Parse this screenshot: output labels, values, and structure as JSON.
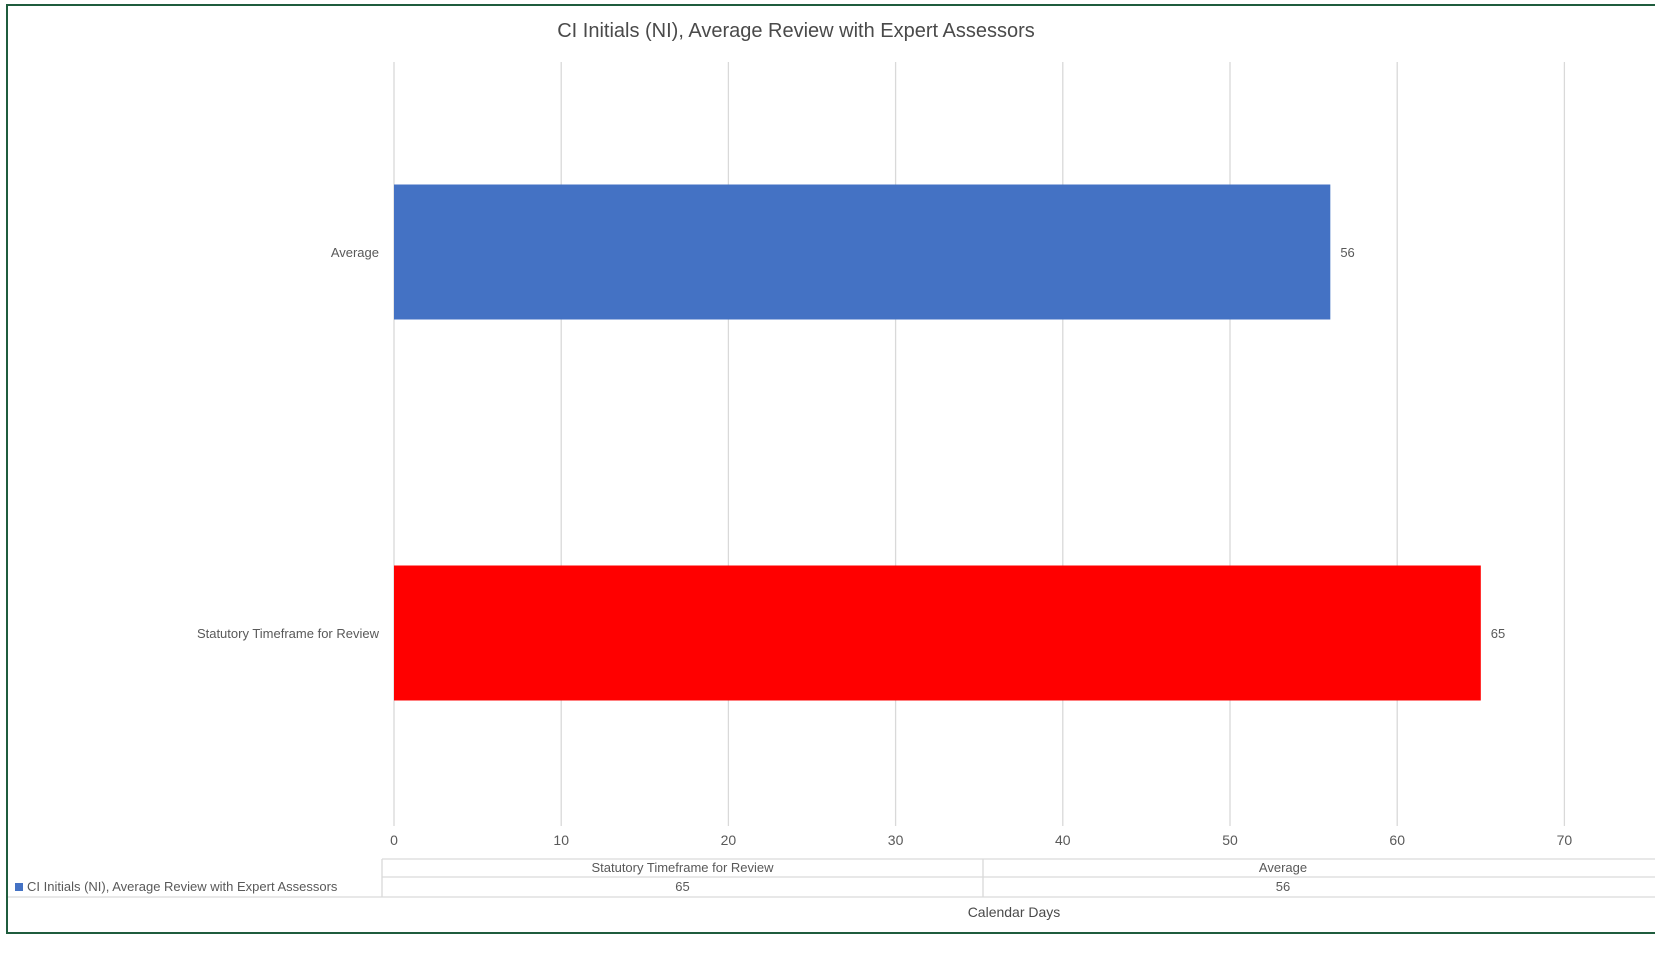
{
  "chart_data": {
    "type": "bar",
    "orientation": "horizontal",
    "title": "CI Initials (NI), Average Review with Expert Assessors",
    "xlabel": "Calendar Days",
    "ylabel": "",
    "xlim": [
      0,
      70
    ],
    "x_ticks": [
      "0",
      "10",
      "20",
      "30",
      "40",
      "50",
      "60",
      "70"
    ],
    "grid": true,
    "categories": [
      "Average",
      "Statutory Timeframe for Review"
    ],
    "values": [
      56,
      65
    ],
    "bar_colors": [
      "#4472C4",
      "#FF0000"
    ],
    "data_labels": [
      "56",
      "65"
    ],
    "series": [
      {
        "name": "CI Initials (NI), Average Review with Expert Assessors",
        "values": [
          56,
          65
        ],
        "color": "#4472C4"
      }
    ],
    "data_table": {
      "headers": [
        "Statutory Timeframe for Review",
        "Average"
      ],
      "row_label": "CI Initials (NI), Average Review with Expert Assessors",
      "row_values": [
        "65",
        "56"
      ],
      "legend_key_color": "#4472C4"
    }
  }
}
